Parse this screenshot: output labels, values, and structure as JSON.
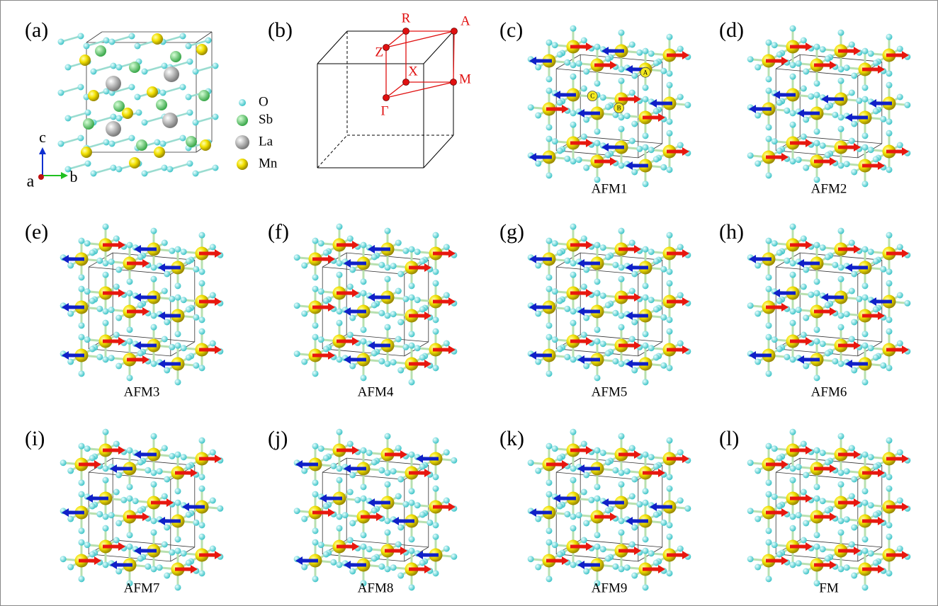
{
  "panels": [
    {
      "label": "(a)"
    },
    {
      "label": "(b)"
    },
    {
      "label": "(c)",
      "caption": "AFM1",
      "site_labels": [
        "C",
        "A",
        "B"
      ]
    },
    {
      "label": "(d)",
      "caption": "AFM2"
    },
    {
      "label": "(e)",
      "caption": "AFM3"
    },
    {
      "label": "(f)",
      "caption": "AFM4"
    },
    {
      "label": "(g)",
      "caption": "AFM5"
    },
    {
      "label": "(h)",
      "caption": "AFM6"
    },
    {
      "label": "(i)",
      "caption": "AFM7"
    },
    {
      "label": "(j)",
      "caption": "AFM8"
    },
    {
      "label": "(k)",
      "caption": "AFM9"
    },
    {
      "label": "(l)",
      "caption": "FM"
    }
  ],
  "legend": [
    "O",
    "Sb",
    "La",
    "Mn"
  ],
  "axes": {
    "c": "c",
    "a": "a",
    "b": "b"
  },
  "bz_points": [
    "R",
    "A",
    "Z",
    "X",
    "M",
    "Γ"
  ]
}
